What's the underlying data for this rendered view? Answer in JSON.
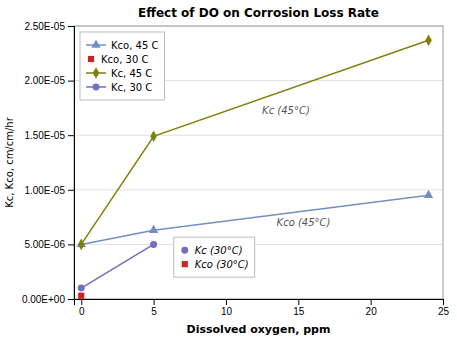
{
  "chart_data": {
    "type": "line",
    "title": "Effect of DO on Corrosion Loss Rate",
    "x_label": "Dissolved oxygen, ppm",
    "y_label": "Kc, Kco, cm/cm/hr",
    "xlim": [
      -0.5,
      25
    ],
    "ylim": [
      0,
      2.5e-05
    ],
    "xticks": [
      0,
      5,
      10,
      15,
      20,
      25
    ],
    "yticks": [
      {
        "value": 0,
        "label": "0.00E+00"
      },
      {
        "value": 5e-06,
        "label": "5.00E-06"
      },
      {
        "value": 1e-05,
        "label": "1.00E-05"
      },
      {
        "value": 1.5e-05,
        "label": "1.50E-05"
      },
      {
        "value": 2e-05,
        "label": "2.00E-05"
      },
      {
        "value": 2.5e-05,
        "label": "2.50E-05"
      }
    ],
    "grid": "y",
    "legend": "upper left",
    "series": [
      {
        "name": "Kco, 45 C",
        "color": "#7090c0",
        "marker": "triangle",
        "line_style": "solid",
        "x": [
          0,
          5,
          24
        ],
        "values": [
          5e-06,
          6.3e-06,
          9.5e-06
        ]
      },
      {
        "name": "Kco, 30 C",
        "color": "#cc2222",
        "marker": "square",
        "line_style": "none",
        "x": [
          0
        ],
        "values": [
          3e-07
        ]
      },
      {
        "name": "Kc, 45 C",
        "color": "#808010",
        "marker": "diamond",
        "line_style": "solid",
        "x": [
          0,
          5,
          24
        ],
        "values": [
          5e-06,
          1.49e-05,
          2.37e-05
        ]
      },
      {
        "name": "Kc, 30 C",
        "color": "#7070c0",
        "marker": "circle",
        "line_style": "solid",
        "x": [
          0,
          5
        ],
        "values": [
          1e-06,
          5e-06
        ]
      }
    ],
    "annotations": [
      {
        "text": "Kc (45°C)",
        "x": 12.5,
        "y": 1.78e-05
      },
      {
        "text": "Kco (45°C)",
        "x": 13.5,
        "y": 7.5e-06
      }
    ],
    "notes": [
      {
        "text": "Kc (30°C)",
        "color": "#7070c0",
        "marker": "circle"
      },
      {
        "text": "Kco (30°C)",
        "color": "#cc2222",
        "marker": "square"
      }
    ]
  }
}
